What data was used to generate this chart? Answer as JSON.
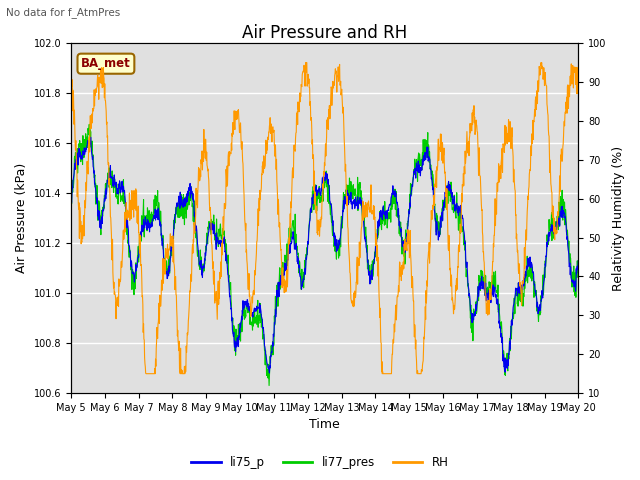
{
  "title": "Air Pressure and RH",
  "top_left_text": "No data for f_AtmPres",
  "box_label": "BA_met",
  "ylabel_left": "Air Pressure (kPa)",
  "ylabel_right": "Relativity Humidity (%)",
  "xlabel": "Time",
  "ylim_left": [
    100.6,
    102.0
  ],
  "ylim_right": [
    10,
    100
  ],
  "yticks_left": [
    100.6,
    100.8,
    101.0,
    101.2,
    101.4,
    101.6,
    101.8,
    102.0
  ],
  "yticks_right": [
    10,
    20,
    30,
    40,
    50,
    60,
    70,
    80,
    90,
    100
  ],
  "xtick_labels": [
    "May 5",
    "May 6",
    "May 7",
    "May 8",
    "May 9",
    "May 10",
    "May 11",
    "May 12",
    "May 13",
    "May 14",
    "May 15",
    "May 16",
    "May 17",
    "May 18",
    "May 19",
    "May 20"
  ],
  "color_li75": "#0000ee",
  "color_li77": "#00cc00",
  "color_rh": "#ff9900",
  "legend_labels": [
    "li75_p",
    "li77_pres",
    "RH"
  ],
  "background_color": "#ffffff",
  "plot_bg_color": "#e0e0e0",
  "grid_color": "#ffffff",
  "title_fontsize": 12,
  "label_fontsize": 9,
  "tick_fontsize": 7
}
